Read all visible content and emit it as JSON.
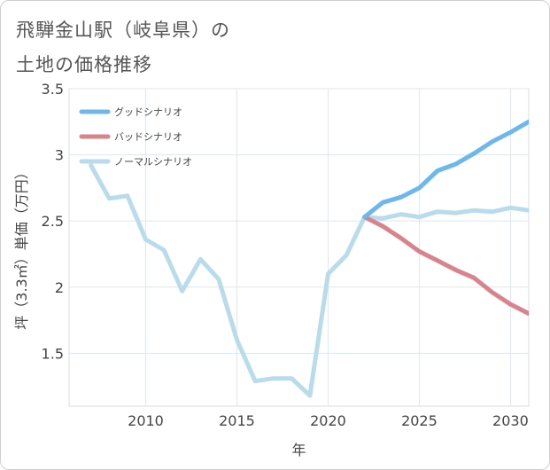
{
  "title_line1": "飛騨金山駅（岐阜県）の",
  "title_line2": "土地の価格推移",
  "chart_data": {
    "type": "line",
    "xlabel": "年",
    "ylabel": "坪（3.3㎡）単価（万円）",
    "xlim": [
      2005.8,
      2031
    ],
    "ylim": [
      1.1,
      3.5
    ],
    "xticks": [
      2010,
      2015,
      2020,
      2025,
      2030
    ],
    "yticks": [
      1.5,
      2,
      2.5,
      3,
      3.5
    ],
    "ytick_labels": [
      "1.5",
      "2",
      "2.5",
      "3",
      "3.5"
    ],
    "grid": true,
    "legend_position": "top-left",
    "series": [
      {
        "name": "グッドシナリオ",
        "color": "#6cb8ed",
        "x": [
          2022,
          2023,
          2024,
          2025,
          2026,
          2027,
          2028,
          2029,
          2030,
          2031
        ],
        "y": [
          2.53,
          2.64,
          2.68,
          2.75,
          2.88,
          2.93,
          3.01,
          3.1,
          3.17,
          3.25
        ]
      },
      {
        "name": "バッドシナリオ",
        "color": "#d9838c",
        "x": [
          2022,
          2023,
          2024,
          2025,
          2026,
          2027,
          2028,
          2029,
          2030,
          2031
        ],
        "y": [
          2.53,
          2.46,
          2.37,
          2.27,
          2.2,
          2.13,
          2.07,
          1.96,
          1.87,
          1.8
        ]
      },
      {
        "name": "ノーマルシナリオ",
        "color": "#b9dced",
        "x": [
          2007,
          2008,
          2009,
          2010,
          2011,
          2012,
          2013,
          2014,
          2015,
          2016,
          2017,
          2018,
          2019,
          2020,
          2021,
          2022,
          2023,
          2024,
          2025,
          2026,
          2027,
          2028,
          2029,
          2030,
          2031
        ],
        "y": [
          2.92,
          2.67,
          2.69,
          2.36,
          2.28,
          1.97,
          2.21,
          2.06,
          1.6,
          1.29,
          1.31,
          1.31,
          1.18,
          2.1,
          2.24,
          2.53,
          2.52,
          2.55,
          2.53,
          2.57,
          2.56,
          2.58,
          2.57,
          2.6,
          2.58
        ]
      }
    ]
  }
}
